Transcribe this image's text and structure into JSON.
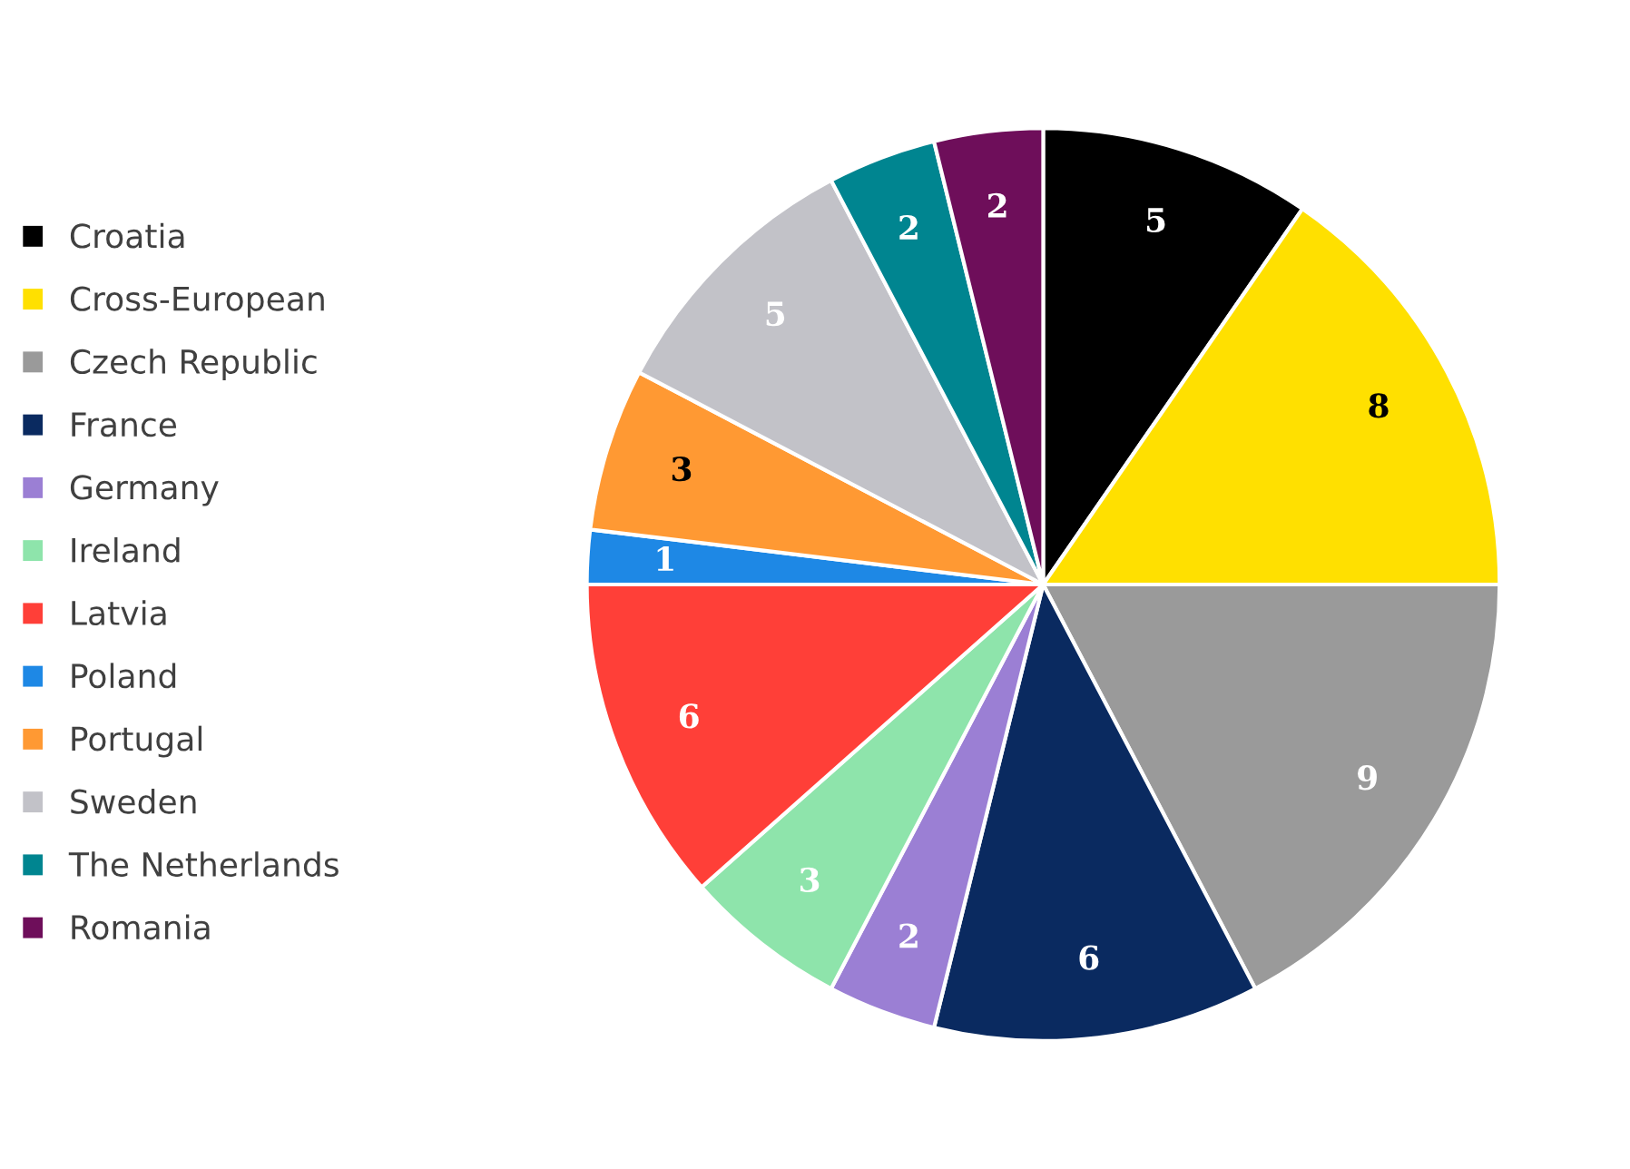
{
  "chart_data": {
    "type": "pie",
    "categories": [
      "Croatia",
      "Cross-European",
      "Czech Republic",
      "France",
      "Germany",
      "Ireland",
      "Latvia",
      "Poland",
      "Portugal",
      "Sweden",
      "The Netherlands",
      "Romania"
    ],
    "values": [
      5,
      8,
      9,
      6,
      2,
      3,
      6,
      1,
      3,
      5,
      2,
      2
    ],
    "colors": [
      "#000000",
      "#ffe000",
      "#9a9a9a",
      "#0a2a60",
      "#9b7fd4",
      "#8ee4ab",
      "#ff3f38",
      "#1e88e5",
      "#ff9933",
      "#c2c2c8",
      "#008590",
      "#6e0e5a"
    ],
    "data_labels": true,
    "legend": "left"
  }
}
